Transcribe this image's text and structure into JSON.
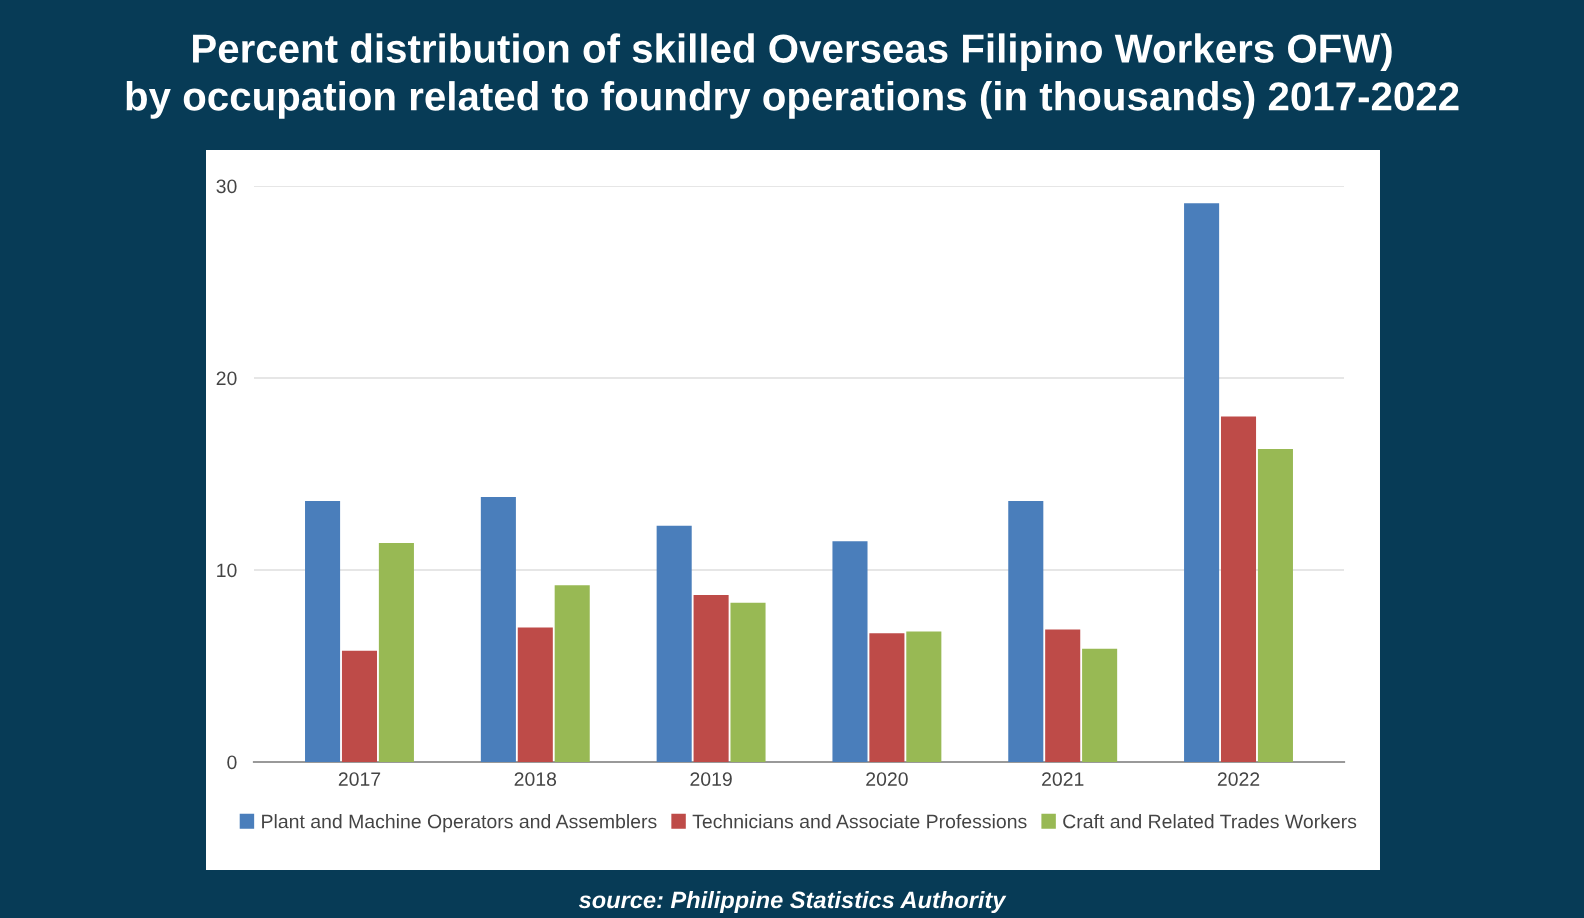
{
  "chart_data": {
    "type": "bar",
    "title": "Percent distribution of skilled Overseas Filipino Workers OFW)\nby occupation related to foundry operations (in thousands) 2017-2022",
    "categories": [
      "2017",
      "2018",
      "2019",
      "2020",
      "2021",
      "2022"
    ],
    "series": [
      {
        "name": "Plant and Machine Operators and Assemblers",
        "color": "#4a7ebb",
        "values": [
          13.6,
          13.8,
          12.3,
          11.5,
          13.6,
          29.1
        ]
      },
      {
        "name": "Technicians and Associate Professions",
        "color": "#be4b48",
        "values": [
          5.8,
          7.0,
          8.7,
          6.7,
          6.9,
          18.0
        ]
      },
      {
        "name": "Craft and Related Trades Workers",
        "color": "#98b954",
        "values": [
          11.4,
          9.2,
          8.3,
          6.8,
          5.9,
          16.3
        ]
      }
    ],
    "ylim": [
      0,
      30
    ],
    "yticks": [
      0,
      10,
      20,
      30
    ],
    "grid": "y",
    "legend": "bottom",
    "annotations": [
      "source: Philippine Statistics Authority"
    ]
  }
}
